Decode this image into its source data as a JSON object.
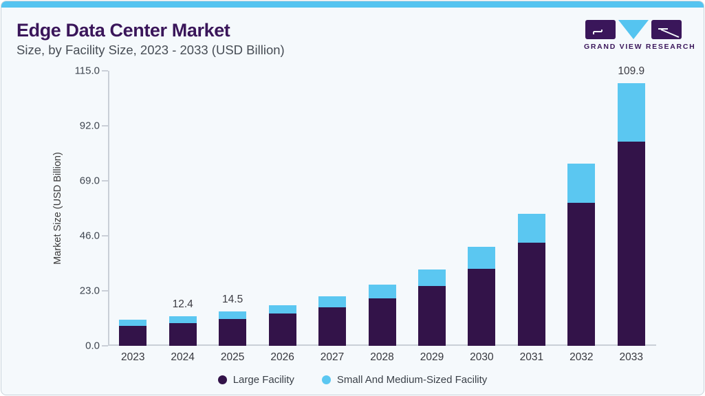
{
  "page": {
    "background": "#f5f9fc",
    "accent_color": "#55c4f0",
    "purple_dark": "#3a165a"
  },
  "header": {
    "title": "Edge Data Center Market",
    "subtitle": "Size, by Facility Size, 2023 - 2033 (USD Billion)"
  },
  "logo": {
    "text": "GRAND VIEW RESEARCH",
    "mark_purple": "#3a165a",
    "mark_cyan": "#55c4f0"
  },
  "chart_data": {
    "type": "bar",
    "stacked": true,
    "title": "Edge Data Center Market Size, by Facility Size, 2023 - 2033 (USD Billion)",
    "categories": [
      "2023",
      "2024",
      "2025",
      "2026",
      "2027",
      "2028",
      "2029",
      "2030",
      "2031",
      "2032",
      "2033"
    ],
    "series": [
      {
        "name": "Large Facility",
        "color": "#331349",
        "values": [
          8.3,
          9.6,
          11.3,
          13.4,
          16.0,
          19.8,
          25.0,
          32.3,
          43.1,
          59.9,
          85.5
        ]
      },
      {
        "name": "Small And Medium-Sized Facility",
        "color": "#5bc7f1",
        "values": [
          2.5,
          2.8,
          3.2,
          3.7,
          4.6,
          5.8,
          7.0,
          9.0,
          12.2,
          16.2,
          24.4
        ]
      }
    ],
    "totals": [
      10.8,
      12.4,
      14.5,
      17.1,
      20.6,
      25.6,
      32.0,
      41.3,
      55.3,
      76.1,
      109.9
    ],
    "data_labels": {
      "2024": "12.4",
      "2025": "14.5",
      "2033": "109.9"
    },
    "xlabel": "",
    "ylabel": "Market Size (USD Billion)",
    "ylim": [
      0,
      115
    ],
    "yticks": [
      "0.0",
      "23.0",
      "46.0",
      "69.0",
      "92.0",
      "115.0"
    ],
    "grid": false,
    "legend_position": "bottom"
  },
  "legend": {
    "items": [
      {
        "label": "Large Facility",
        "color": "#331349"
      },
      {
        "label": "Small And Medium-Sized Facility",
        "color": "#5bc7f1"
      }
    ]
  }
}
